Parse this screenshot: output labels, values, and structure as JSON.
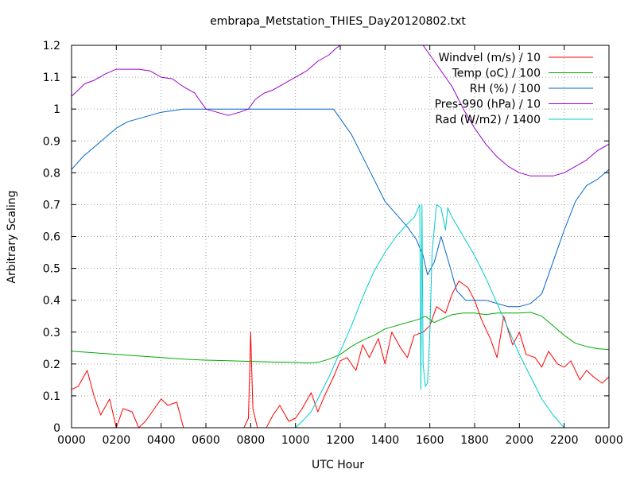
{
  "chart_data": {
    "type": "line",
    "title": "embrapa_Metstation_THIES_Day20120802.txt",
    "xlabel": "UTC Hour",
    "ylabel": "Arbitrary Scaling",
    "xlim": [
      0,
      24
    ],
    "ylim": [
      0,
      1.2
    ],
    "grid": true,
    "legend_position": "top-right",
    "x_ticks": [
      {
        "value": 0,
        "label": "0000"
      },
      {
        "value": 2,
        "label": "0200"
      },
      {
        "value": 4,
        "label": "0400"
      },
      {
        "value": 6,
        "label": "0600"
      },
      {
        "value": 8,
        "label": "0800"
      },
      {
        "value": 10,
        "label": "1000"
      },
      {
        "value": 12,
        "label": "1200"
      },
      {
        "value": 14,
        "label": "1400"
      },
      {
        "value": 16,
        "label": "1600"
      },
      {
        "value": 18,
        "label": "1800"
      },
      {
        "value": 20,
        "label": "2000"
      },
      {
        "value": 22,
        "label": "2200"
      },
      {
        "value": 24,
        "label": "0000"
      }
    ],
    "y_ticks": [
      {
        "value": 0,
        "label": "0"
      },
      {
        "value": 0.1,
        "label": "0.1"
      },
      {
        "value": 0.2,
        "label": "0.2"
      },
      {
        "value": 0.3,
        "label": "0.3"
      },
      {
        "value": 0.4,
        "label": "0.4"
      },
      {
        "value": 0.5,
        "label": "0.5"
      },
      {
        "value": 0.6,
        "label": "0.6"
      },
      {
        "value": 0.7,
        "label": "0.7"
      },
      {
        "value": 0.8,
        "label": "0.8"
      },
      {
        "value": 0.9,
        "label": "0.9"
      },
      {
        "value": 1.0,
        "label": "1"
      },
      {
        "value": 1.1,
        "label": "1.1"
      },
      {
        "value": 1.2,
        "label": "1.2"
      }
    ],
    "series": [
      {
        "name": "Windvel (m/s) / 10",
        "color": "#ff0000",
        "x": [
          0,
          0.3,
          0.7,
          1.0,
          1.3,
          1.7,
          2.0,
          2.3,
          2.7,
          3.0,
          3.3,
          3.7,
          4.0,
          4.3,
          4.7,
          5.0,
          5.3,
          5.7,
          6.0,
          6.3,
          6.7,
          7.0,
          7.3,
          7.7,
          7.9,
          8.0,
          8.1,
          8.3,
          8.7,
          9.0,
          9.3,
          9.7,
          10.0,
          10.3,
          10.7,
          11.0,
          11.3,
          11.7,
          12.0,
          12.3,
          12.7,
          13.0,
          13.3,
          13.7,
          14.0,
          14.3,
          14.7,
          15.0,
          15.3,
          15.7,
          16.0,
          16.3,
          16.7,
          17.0,
          17.3,
          17.7,
          18.0,
          18.3,
          18.7,
          19.0,
          19.3,
          19.7,
          20.0,
          20.3,
          20.7,
          21.0,
          21.3,
          21.7,
          22.0,
          22.3,
          22.7,
          23.0,
          23.3,
          23.7,
          24.0
        ],
        "values": [
          0.12,
          0.13,
          0.18,
          0.1,
          0.04,
          0.09,
          0.0,
          0.06,
          0.05,
          0.0,
          0.02,
          0.06,
          0.09,
          0.07,
          0.08,
          0.0,
          0.0,
          0.0,
          0.0,
          0.0,
          0.0,
          0.0,
          0.0,
          0.0,
          0.03,
          0.3,
          0.06,
          0.0,
          0.0,
          0.04,
          0.07,
          0.02,
          0.03,
          0.06,
          0.11,
          0.05,
          0.1,
          0.16,
          0.21,
          0.22,
          0.18,
          0.26,
          0.22,
          0.28,
          0.2,
          0.3,
          0.25,
          0.22,
          0.29,
          0.3,
          0.32,
          0.38,
          0.36,
          0.42,
          0.46,
          0.44,
          0.4,
          0.34,
          0.28,
          0.22,
          0.35,
          0.26,
          0.3,
          0.23,
          0.22,
          0.19,
          0.24,
          0.2,
          0.19,
          0.21,
          0.15,
          0.18,
          0.16,
          0.14,
          0.16
        ]
      },
      {
        "name": "Temp (oC) / 100",
        "color": "#00aa00",
        "x": [
          0,
          1,
          2,
          3,
          4,
          5,
          6,
          7,
          8,
          9,
          10,
          10.5,
          11,
          11.5,
          12,
          12.5,
          13,
          13.5,
          14,
          14.5,
          15,
          15.5,
          15.8,
          16.2,
          16.5,
          17,
          17.5,
          18,
          18.5,
          19,
          19.5,
          20,
          20.5,
          21,
          21.5,
          22,
          22.5,
          23,
          23.5,
          24
        ],
        "values": [
          0.24,
          0.235,
          0.23,
          0.225,
          0.22,
          0.215,
          0.212,
          0.21,
          0.208,
          0.206,
          0.205,
          0.203,
          0.205,
          0.215,
          0.23,
          0.255,
          0.275,
          0.29,
          0.31,
          0.32,
          0.33,
          0.34,
          0.35,
          0.33,
          0.34,
          0.355,
          0.36,
          0.36,
          0.355,
          0.36,
          0.36,
          0.36,
          0.362,
          0.35,
          0.32,
          0.29,
          0.265,
          0.255,
          0.248,
          0.245
        ]
      },
      {
        "name": "RH (%) / 100",
        "color": "#0066cc",
        "x": [
          0,
          0.5,
          1.0,
          1.5,
          2.0,
          2.5,
          3.0,
          3.5,
          4.0,
          4.5,
          5.0,
          5.5,
          6.0,
          7.0,
          8.0,
          9.0,
          10.0,
          11.0,
          11.7,
          12.0,
          12.5,
          13.0,
          13.5,
          14.0,
          14.5,
          15.0,
          15.4,
          15.7,
          15.9,
          16.2,
          16.5,
          16.8,
          17.2,
          17.6,
          18.0,
          18.5,
          19.0,
          19.5,
          20.0,
          20.5,
          21.0,
          21.5,
          22.0,
          22.5,
          23.0,
          23.5,
          24.0
        ],
        "values": [
          0.81,
          0.85,
          0.88,
          0.91,
          0.94,
          0.96,
          0.97,
          0.98,
          0.99,
          0.995,
          1.0,
          1.0,
          1.0,
          1.0,
          1.0,
          1.0,
          1.0,
          1.0,
          1.0,
          0.97,
          0.92,
          0.85,
          0.78,
          0.71,
          0.67,
          0.63,
          0.59,
          0.54,
          0.48,
          0.52,
          0.6,
          0.53,
          0.43,
          0.4,
          0.4,
          0.4,
          0.39,
          0.38,
          0.38,
          0.39,
          0.42,
          0.52,
          0.62,
          0.71,
          0.76,
          0.78,
          0.81
        ]
      },
      {
        "name": "Pres-990 (hPa) / 10",
        "color": "#9900cc",
        "x": [
          0,
          0.3,
          0.6,
          1.0,
          1.5,
          2.0,
          2.5,
          3.0,
          3.5,
          4.0,
          4.5,
          5.0,
          5.5,
          6.0,
          6.5,
          7.0,
          7.5,
          7.9,
          8.2,
          8.6,
          9.0,
          9.5,
          10.0,
          10.5,
          11.0,
          11.5,
          11.8,
          12.0,
          15.7,
          16.0,
          16.5,
          17.0,
          17.5,
          18.0,
          18.5,
          19.0,
          19.5,
          20.0,
          20.5,
          21.0,
          21.5,
          22.0,
          22.5,
          23.0,
          23.5,
          24.0
        ],
        "values": [
          1.04,
          1.06,
          1.08,
          1.09,
          1.11,
          1.125,
          1.125,
          1.125,
          1.12,
          1.1,
          1.095,
          1.07,
          1.05,
          1.0,
          0.99,
          0.98,
          0.99,
          1.0,
          1.03,
          1.05,
          1.06,
          1.08,
          1.1,
          1.12,
          1.15,
          1.17,
          1.19,
          1.2,
          1.2,
          1.17,
          1.12,
          1.07,
          1.0,
          0.94,
          0.89,
          0.85,
          0.82,
          0.8,
          0.79,
          0.79,
          0.79,
          0.8,
          0.82,
          0.84,
          0.87,
          0.89
        ]
      },
      {
        "name": "Rad (W/m2) / 1400",
        "color": "#00cccc",
        "x": [
          0,
          10.0,
          10.3,
          10.7,
          11.0,
          11.5,
          12.0,
          12.5,
          13.0,
          13.5,
          14.0,
          14.5,
          15.0,
          15.3,
          15.55,
          15.6,
          15.65,
          15.7,
          15.8,
          15.9,
          16.0,
          16.1,
          16.3,
          16.5,
          16.7,
          16.8,
          17.0,
          17.5,
          18.0,
          18.5,
          19.0,
          19.5,
          20.0,
          20.5,
          21.0,
          21.5,
          22.0,
          24.0
        ],
        "values": [
          0,
          0,
          0.02,
          0.05,
          0.09,
          0.16,
          0.24,
          0.32,
          0.41,
          0.49,
          0.55,
          0.6,
          0.64,
          0.66,
          0.7,
          0.12,
          0.7,
          0.2,
          0.13,
          0.14,
          0.3,
          0.55,
          0.7,
          0.69,
          0.62,
          0.69,
          0.66,
          0.6,
          0.54,
          0.47,
          0.39,
          0.31,
          0.23,
          0.16,
          0.09,
          0.04,
          0.0,
          0
        ]
      }
    ]
  }
}
